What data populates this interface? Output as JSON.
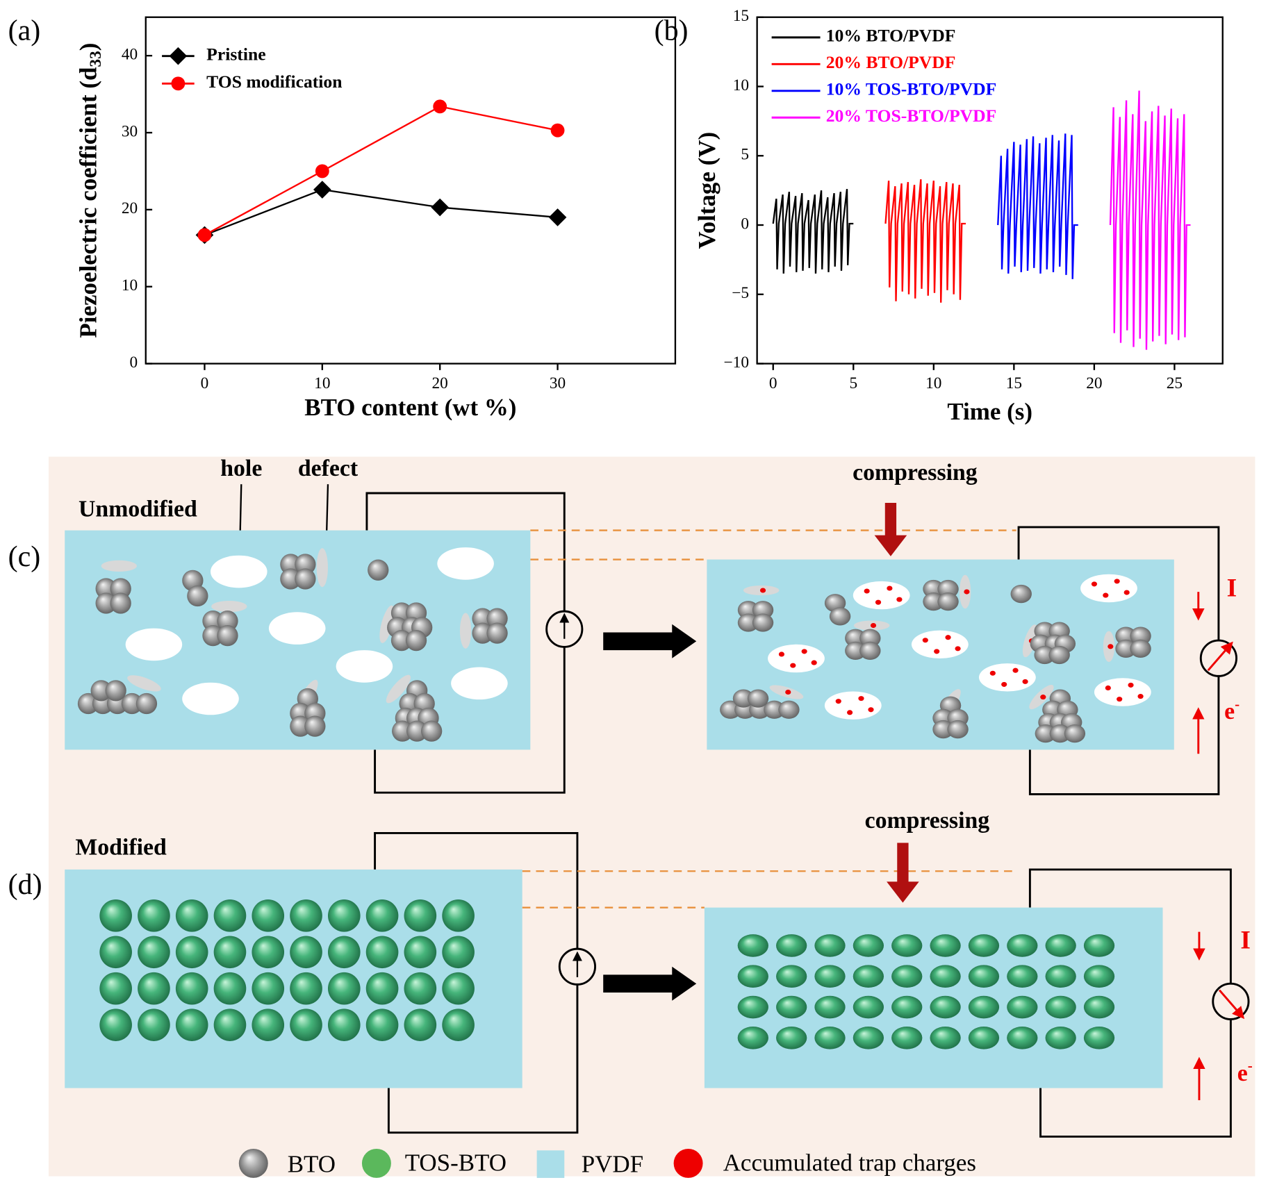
{
  "chart_data": [
    {
      "type": "line",
      "panel": "(a)",
      "x_label": "BTO content (wt %)",
      "y_label": {
        "text": "Piezoelectric coefficient (d",
        "sub": "33",
        "end": ")"
      },
      "x": [
        0,
        10,
        20,
        30
      ],
      "xlim": [
        -5,
        40
      ],
      "xticks": [
        0,
        10,
        20,
        30
      ],
      "ylim": [
        0,
        45
      ],
      "yticks": [
        0,
        10,
        20,
        30,
        40
      ],
      "legend": "upper left",
      "series": [
        {
          "name": "Pristine",
          "color": "#000000",
          "marker": "diamond",
          "values": [
            16.7,
            22.6,
            20.3,
            19.0
          ]
        },
        {
          "name": "TOS modification",
          "color": "#ff0000",
          "marker": "circle",
          "values": [
            16.7,
            25.0,
            33.4,
            30.3
          ]
        }
      ]
    },
    {
      "type": "line",
      "panel": "(b)",
      "x_label": "Time (s)",
      "y_label": "Voltage (V)",
      "xlim": [
        -1,
        28
      ],
      "xticks": [
        0,
        5,
        10,
        15,
        20,
        25
      ],
      "ylim": [
        -10,
        15
      ],
      "yticks": [
        {
          "value": -10,
          "label": "−10"
        },
        {
          "value": -5,
          "label": "−5"
        },
        0,
        5,
        10,
        15
      ],
      "legend": "upper left",
      "series": [
        {
          "name": "10% BTO/PVDF",
          "color": "#000000",
          "x": [
            0,
            0.2,
            0.25,
            0.35,
            0.6,
            0.65,
            0.75,
            1.0,
            1.05,
            1.15,
            1.4,
            1.45,
            1.55,
            1.8,
            1.85,
            1.95,
            2.2,
            2.25,
            2.35,
            2.6,
            2.65,
            2.75,
            3.0,
            3.05,
            3.15,
            3.4,
            3.45,
            3.55,
            3.8,
            3.85,
            3.95,
            4.2,
            4.25,
            4.35,
            4.6,
            4.65,
            4.75,
            5.0
          ],
          "values": [
            0.1,
            1.9,
            -3.2,
            0.1,
            2.2,
            -3.5,
            0.1,
            2.4,
            -3.0,
            0.1,
            2.1,
            -3.4,
            0.1,
            2.3,
            -3.3,
            0.1,
            1.8,
            -3.1,
            0.1,
            2.2,
            -3.5,
            0.1,
            2.5,
            -3.2,
            0.1,
            2.0,
            -3.4,
            0.1,
            2.3,
            -3.0,
            0.1,
            2.4,
            -3.3,
            0.1,
            2.6,
            -2.9,
            0.1,
            0.1
          ]
        },
        {
          "name": "20% BTO/PVDF",
          "color": "#ff0000",
          "x": [
            7.0,
            7.2,
            7.25,
            7.35,
            7.6,
            7.65,
            7.75,
            8.0,
            8.05,
            8.15,
            8.4,
            8.45,
            8.55,
            8.8,
            8.85,
            8.95,
            9.2,
            9.25,
            9.35,
            9.6,
            9.65,
            9.75,
            10.0,
            10.05,
            10.15,
            10.4,
            10.45,
            10.55,
            10.8,
            10.85,
            10.95,
            11.2,
            11.25,
            11.35,
            11.6,
            11.65,
            11.75,
            12.0
          ],
          "values": [
            0.1,
            3.2,
            -4.5,
            0.1,
            2.8,
            -5.5,
            0.1,
            3.0,
            -4.8,
            0.1,
            3.1,
            -5.0,
            0.1,
            2.9,
            -5.3,
            0.1,
            3.3,
            -4.6,
            0.1,
            3.0,
            -5.1,
            0.1,
            3.2,
            -4.9,
            0.1,
            2.8,
            -5.6,
            0.1,
            3.1,
            -4.7,
            0.1,
            3.0,
            -5.0,
            0.1,
            2.9,
            -5.4,
            0.1,
            0.1
          ]
        },
        {
          "name": "10% TOS-BTO/PVDF",
          "color": "#0000ff",
          "x": [
            14.0,
            14.2,
            14.25,
            14.35,
            14.6,
            14.65,
            14.75,
            15.0,
            15.05,
            15.15,
            15.4,
            15.45,
            15.55,
            15.8,
            15.85,
            15.95,
            16.2,
            16.25,
            16.35,
            16.6,
            16.65,
            16.75,
            17.0,
            17.05,
            17.15,
            17.4,
            17.45,
            17.55,
            17.8,
            17.85,
            17.95,
            18.2,
            18.25,
            18.35,
            18.6,
            18.65,
            18.75,
            19.0
          ],
          "values": [
            0.0,
            5.0,
            -3.2,
            0.0,
            5.5,
            -3.5,
            0.0,
            6.0,
            -3.0,
            0.0,
            5.8,
            -3.4,
            0.0,
            6.2,
            -3.3,
            0.0,
            6.4,
            -3.1,
            0.0,
            5.9,
            -3.5,
            0.0,
            6.3,
            -3.2,
            0.0,
            6.5,
            -3.4,
            0.0,
            6.1,
            -3.0,
            0.0,
            6.6,
            -3.6,
            0.0,
            6.5,
            -3.9,
            0.0,
            0.0
          ]
        },
        {
          "name": "20% TOS-BTO/PVDF",
          "color": "#ff00ff",
          "x": [
            21.0,
            21.2,
            21.25,
            21.35,
            21.6,
            21.65,
            21.75,
            22.0,
            22.05,
            22.15,
            22.4,
            22.45,
            22.55,
            22.8,
            22.85,
            22.95,
            23.2,
            23.25,
            23.35,
            23.6,
            23.65,
            23.75,
            24.0,
            24.05,
            24.15,
            24.4,
            24.45,
            24.55,
            24.8,
            24.85,
            24.95,
            25.2,
            25.25,
            25.35,
            25.6,
            25.65,
            25.75,
            26.0
          ],
          "values": [
            0.0,
            8.5,
            -7.8,
            0.0,
            7.8,
            -8.5,
            0.0,
            9.0,
            -7.6,
            0.0,
            8.0,
            -8.8,
            0.0,
            9.7,
            -8.2,
            0.0,
            7.5,
            -9.0,
            0.0,
            8.2,
            -8.4,
            0.0,
            8.6,
            -8.0,
            0.0,
            7.9,
            -8.6,
            0.0,
            8.4,
            -7.9,
            0.0,
            7.7,
            -8.3,
            0.0,
            8.0,
            -8.1,
            0.0,
            0.0
          ]
        }
      ]
    }
  ],
  "diagram": {
    "c": {
      "panel": "(c)",
      "state": "Unmodified",
      "hole": "hole",
      "defect": "defect",
      "action": "compressing",
      "current": "I",
      "electron": "e",
      "electron_sup": "-"
    },
    "d": {
      "panel": "(d)",
      "state": "Modified",
      "action": "compressing",
      "current": "I",
      "electron": "e",
      "electron_sup": "-"
    },
    "legend": [
      "BTO",
      "TOS-BTO",
      "PVDF",
      "Accumulated trap charges"
    ]
  }
}
